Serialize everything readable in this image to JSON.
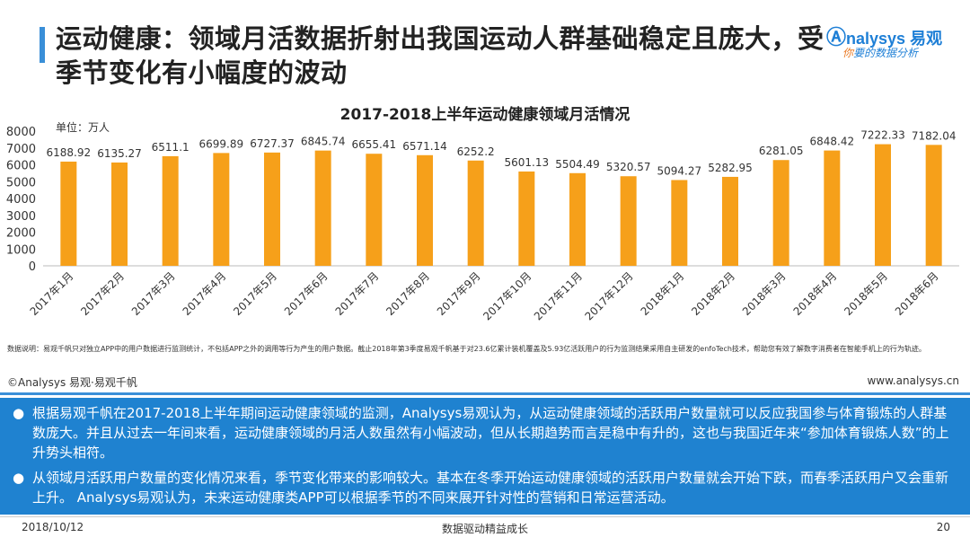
{
  "header": {
    "title": "运动健康：领域月活数据折射出我国运动人群基础稳定且庞大，受季节变化有小幅度的波动",
    "logo_brand": "nalysys",
    "logo_brand_cn": "易观",
    "logo_slogan_first": "你",
    "logo_slogan_rest": "要的数据分析"
  },
  "chart_data": {
    "type": "bar",
    "title": "2017-2018上半年运动健康领域月活情况",
    "unit_label": "单位：万人",
    "categories": [
      "2017年1月",
      "2017年2月",
      "2017年3月",
      "2017年4月",
      "2017年5月",
      "2017年6月",
      "2017年7月",
      "2017年8月",
      "2017年9月",
      "2017年10月",
      "2017年11月",
      "2017年12月",
      "2018年1月",
      "2018年2月",
      "2018年3月",
      "2018年4月",
      "2018年5月",
      "2018年6月"
    ],
    "values": [
      6188.92,
      6135.27,
      6511.1,
      6699.89,
      6727.37,
      6845.74,
      6655.41,
      6571.14,
      6252.2,
      5601.13,
      5504.49,
      5320.57,
      5094.27,
      5282.95,
      6281.05,
      6848.42,
      7222.33,
      7182.04
    ],
    "value_labels": [
      "6188.92",
      "6135.27",
      "6511.1",
      "6699.89",
      "6727.37",
      "6845.74",
      "6655.41",
      "6571.14",
      "6252.2",
      "5601.13",
      "5504.49",
      "5320.57",
      "5094.27",
      "5282.95",
      "6281.05",
      "6848.42",
      "7222.33",
      "7182.04"
    ],
    "yticks": [
      0,
      1000,
      2000,
      3000,
      4000,
      5000,
      6000,
      7000,
      8000
    ],
    "ylim": [
      0,
      8000
    ],
    "bar_color": "#f6a01a",
    "xlabel": "",
    "ylabel": ""
  },
  "note": "数据说明：易观千帆只对独立APP中的用户数据进行监测统计，不包括APP之外的调用等行为产生的用户数据。截止2018年第3季度易观千帆基于对23.6亿累计装机覆盖及5.93亿活跃用户的行为监测结果采用自主研发的enfoTech技术，帮助您有效了解数字消费者在智能手机上的行为轨迹。",
  "source_left": "©Analysys 易观·易观千帆",
  "source_right": "www.analysys.cn",
  "bullets": [
    "根据易观千帆在2017-2018上半年期间运动健康领域的监测，Analysys易观认为，从运动健康领域的活跃用户数量就可以反应我国参与体育锻炼的人群基数庞大。并且从过去一年间来看，运动健康领域的月活人数虽然有小幅波动，但从长期趋势而言是稳中有升的，这也与我国近年来“参加体育锻炼人数”的上升势头相符。",
    "从领域月活跃用户数量的变化情况来看，季节变化带来的影响较大。基本在冬季开始运动健康领域的活跃用户数量就会开始下跌，而春季活跃用户又会重新上升。 Analysys易观认为，未来运动健康类APP可以根据季节的不同来展开针对性的营销和日常运营活动。"
  ],
  "bullet_marker": "●",
  "footer": {
    "date": "2018/10/12",
    "center": "数据驱动精益成长",
    "page": "20"
  }
}
